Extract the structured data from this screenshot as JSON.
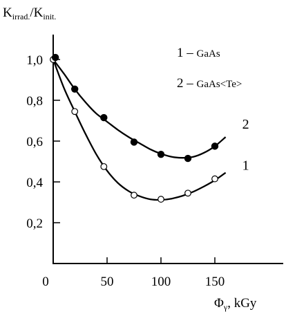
{
  "chart_data": {
    "type": "scatter",
    "ylabel": {
      "main": "K",
      "sub1": "irrad.",
      "slash": "/K",
      "sub2": "init."
    },
    "xlabel": {
      "main": "Φ",
      "sub": "γ",
      "unit": ", kGy"
    },
    "xlim": [
      0,
      175
    ],
    "ylim": [
      0.0,
      1.12
    ],
    "xticks": [
      0,
      50,
      100,
      150
    ],
    "xtick_labels": [
      "0",
      "50",
      "100",
      "150"
    ],
    "yticks": [
      0.2,
      0.4,
      0.6,
      0.8,
      1.0
    ],
    "ytick_labels": [
      "0,2",
      "0,4",
      "0,6",
      "0,8",
      "1,0"
    ],
    "legend": [
      {
        "number": "1",
        "label": "GaAs"
      },
      {
        "number": "2",
        "label": "GaAs<Te>"
      }
    ],
    "series": [
      {
        "id": "1",
        "curve_label": "1",
        "marker": "open-circle",
        "x": [
          0,
          20,
          47,
          75,
          100,
          125,
          150
        ],
        "y": [
          1.0,
          0.745,
          0.475,
          0.335,
          0.315,
          0.345,
          0.415
        ],
        "curve_x": [
          0,
          10,
          20,
          30,
          40,
          50,
          60,
          70,
          80,
          90,
          100,
          110,
          120,
          130,
          140,
          150,
          160
        ],
        "curve_y": [
          1.0,
          0.86,
          0.745,
          0.635,
          0.535,
          0.455,
          0.395,
          0.355,
          0.33,
          0.315,
          0.312,
          0.318,
          0.332,
          0.352,
          0.378,
          0.408,
          0.445
        ]
      },
      {
        "id": "2",
        "curve_label": "2",
        "marker": "filled-circle",
        "x": [
          2,
          20,
          47,
          75,
          100,
          125,
          150
        ],
        "y": [
          1.01,
          0.855,
          0.715,
          0.595,
          0.535,
          0.515,
          0.575
        ],
        "curve_x": [
          0,
          10,
          20,
          30,
          40,
          50,
          60,
          70,
          80,
          90,
          100,
          110,
          120,
          130,
          140,
          150,
          160
        ],
        "curve_y": [
          1.0,
          0.93,
          0.855,
          0.79,
          0.735,
          0.695,
          0.655,
          0.62,
          0.59,
          0.56,
          0.538,
          0.523,
          0.518,
          0.523,
          0.543,
          0.575,
          0.62
        ]
      }
    ]
  }
}
